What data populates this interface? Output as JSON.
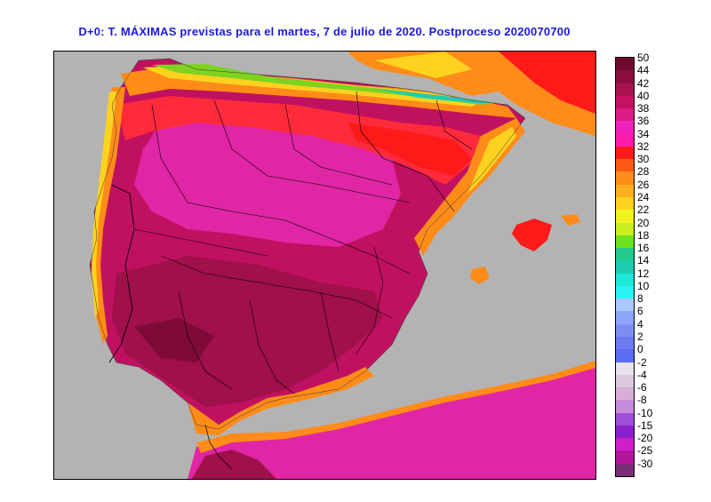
{
  "title": "D+0: T. MÁXIMAS previstas para el martes, 7 de julio de 2020. Postproceso 2020070700",
  "legend": {
    "labels": [
      "50",
      "44",
      "42",
      "40",
      "38",
      "36",
      "34",
      "32",
      "30",
      "28",
      "26",
      "24",
      "22",
      "20",
      "18",
      "16",
      "14",
      "12",
      "10",
      "8",
      "6",
      "4",
      "2",
      "0",
      "-2",
      "-4",
      "-6",
      "-8",
      "-10",
      "-15",
      "-20",
      "-25",
      "-30"
    ],
    "colors": [
      "#6e0a2e",
      "#8a0f3f",
      "#a8124f",
      "#c5115f",
      "#dd1d86",
      "#ee22b8",
      "#ff1aa8",
      "#ff1a1a",
      "#ff5a14",
      "#ff8c19",
      "#ffb020",
      "#ffd21f",
      "#f2f21e",
      "#c8f01e",
      "#6de21e",
      "#22c88c",
      "#1ecdb0",
      "#1ee6d8",
      "#2af2f2",
      "#a8c8ff",
      "#8ea6f8",
      "#7b8ff2",
      "#6b7cf0",
      "#5a6cf0",
      "#e8e0ea",
      "#dcc8dc",
      "#d8aed4",
      "#c58bd8",
      "#9d4fd6",
      "#8a21cc",
      "#d11ec8",
      "#b4169a",
      "#7a2d78"
    ]
  },
  "map": {
    "colors": {
      "sea": "#b3b3b3",
      "hot_core": "#a0104a",
      "hot": "#c01160",
      "warm": "#e026a4",
      "mild": "#ff2a3a",
      "orange": "#ff8c19",
      "yellow": "#ffd21f",
      "green": "#7ed321",
      "teal": "#1ecdb0",
      "border": "#000000"
    }
  }
}
